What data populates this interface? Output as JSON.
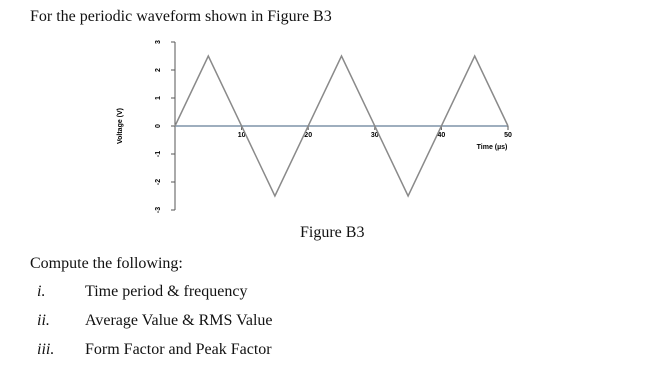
{
  "document": {
    "intro": "For the periodic waveform shown in Figure B3",
    "caption": "Figure B3",
    "heading": "Compute the following:",
    "items": [
      {
        "number": "i.",
        "text": "Time period & frequency"
      },
      {
        "number": "ii.",
        "text": "Average Value & RMS Value"
      },
      {
        "number": "iii.",
        "text": "Form Factor and Peak Factor"
      }
    ]
  },
  "chart_data": {
    "type": "line",
    "x_label": "Time (µs)",
    "y_label": "Voltage (V)",
    "x": [
      0,
      5,
      15,
      25,
      35,
      45,
      50
    ],
    "series": [
      {
        "name": "Voltage",
        "color": "#8a8a8a",
        "values": [
          0,
          2.5,
          -2.5,
          2.5,
          -2.5,
          2.5,
          0
        ]
      }
    ],
    "xlim": [
      0,
      50
    ],
    "xticks": [
      10,
      20,
      30,
      40,
      50
    ],
    "ylim": [
      -3,
      3
    ],
    "yticks": [
      -3,
      -2,
      -1,
      0,
      1,
      2,
      3
    ]
  }
}
